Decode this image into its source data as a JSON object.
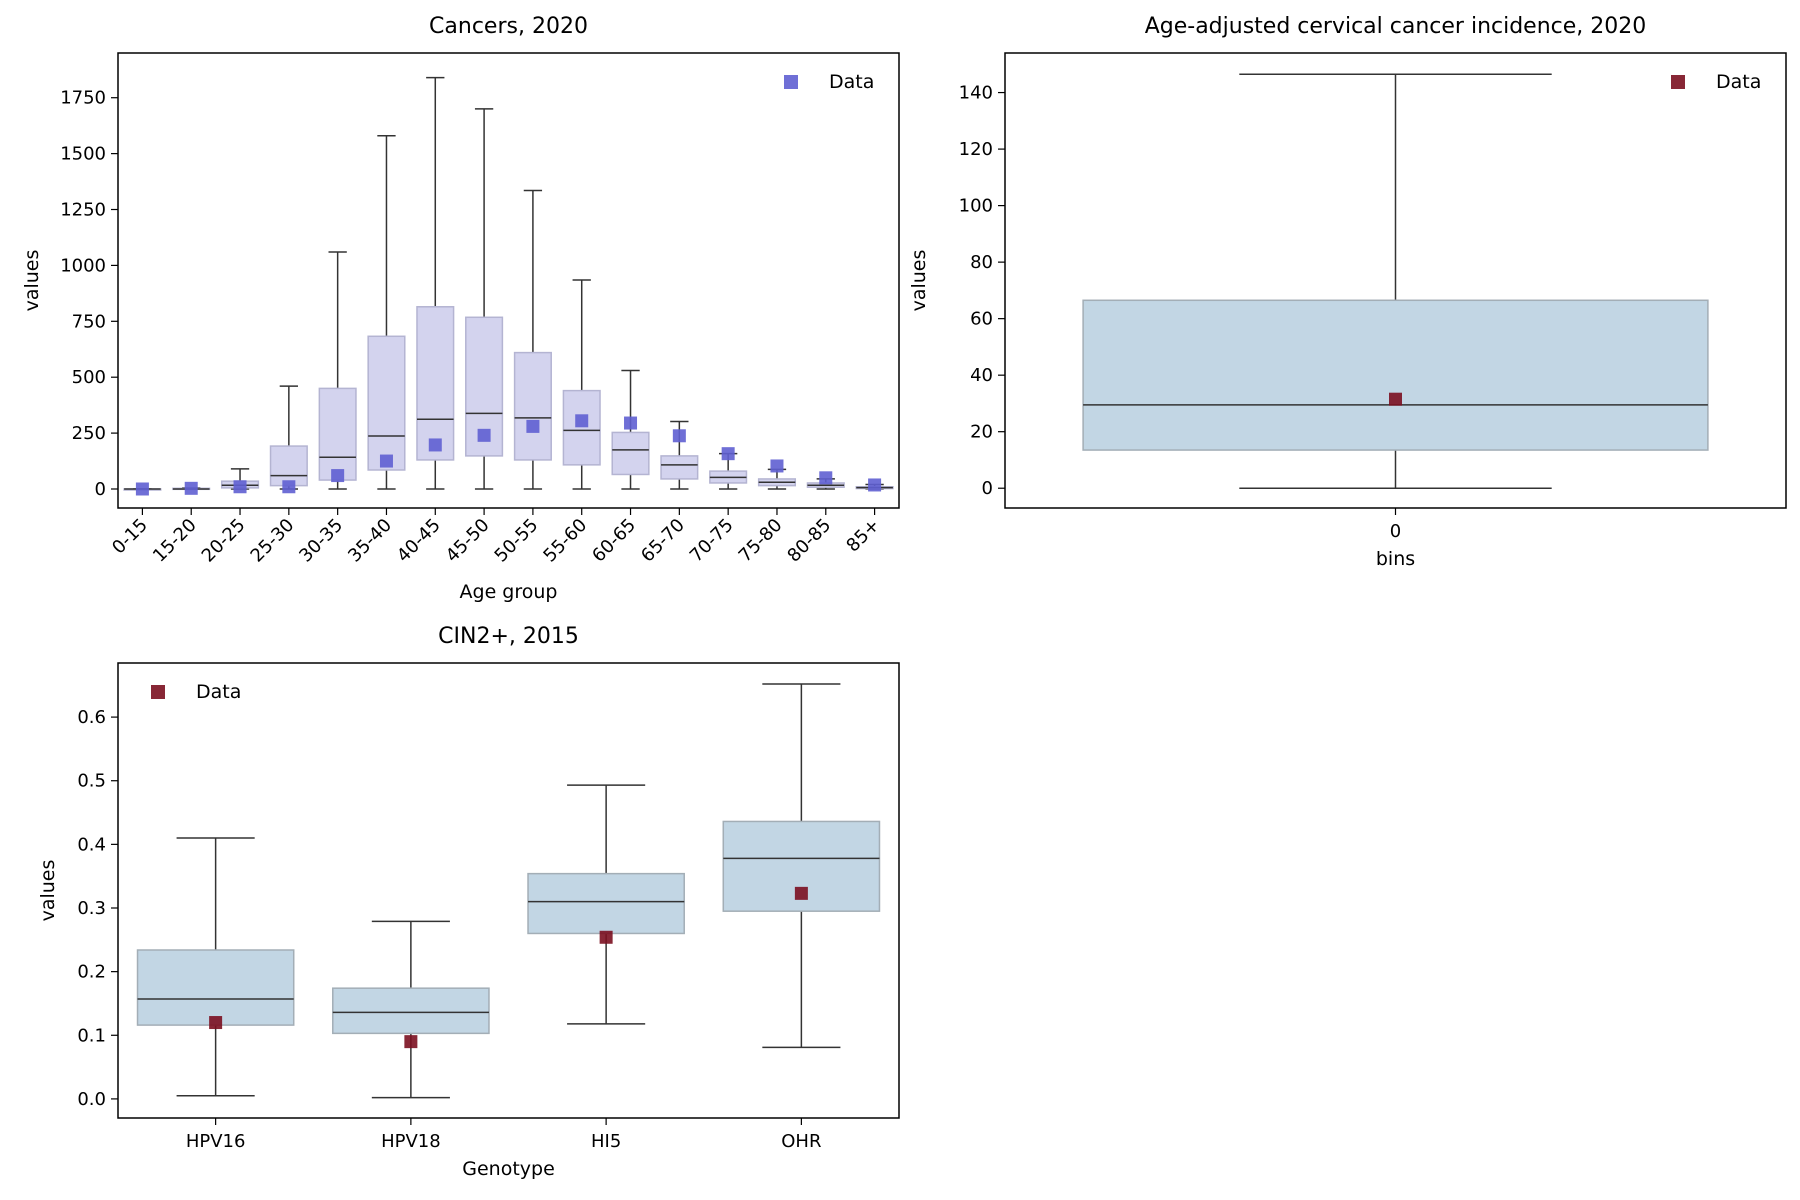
{
  "chart_data": [
    {
      "type": "box",
      "title": "Cancers, 2020",
      "xlabel": "Age group",
      "ylabel": "values",
      "ylim": [
        -85,
        1950
      ],
      "yticks": [
        0,
        250,
        500,
        750,
        1000,
        1250,
        1500,
        1750
      ],
      "box_color": "#d3d3ee",
      "box_edge": "#b4b4d2",
      "marker_color": "#5f5fd2",
      "legend": {
        "label": "Data",
        "position": "upper right"
      },
      "categories": [
        "0-15",
        "15-20",
        "20-25",
        "25-30",
        "30-35",
        "35-40",
        "40-45",
        "45-50",
        "50-55",
        "55-60",
        "60-65",
        "65-70",
        "70-75",
        "75-80",
        "80-85",
        "85+"
      ],
      "boxes": [
        {
          "whislo": 0,
          "q1": 0,
          "med": 0,
          "q3": 0,
          "whishi": 0
        },
        {
          "whislo": 0,
          "q1": 0,
          "med": 0,
          "q3": 3,
          "whishi": 5
        },
        {
          "whislo": 0,
          "q1": 5,
          "med": 17,
          "q3": 35,
          "whishi": 90
        },
        {
          "whislo": 0,
          "q1": 15,
          "med": 60,
          "q3": 192,
          "whishi": 460
        },
        {
          "whislo": 0,
          "q1": 40,
          "med": 142,
          "q3": 450,
          "whishi": 1060
        },
        {
          "whislo": 0,
          "q1": 85,
          "med": 237,
          "q3": 683,
          "whishi": 1580
        },
        {
          "whislo": 0,
          "q1": 130,
          "med": 312,
          "q3": 815,
          "whishi": 1840
        },
        {
          "whislo": 0,
          "q1": 148,
          "med": 338,
          "q3": 768,
          "whishi": 1700
        },
        {
          "whislo": 0,
          "q1": 130,
          "med": 318,
          "q3": 610,
          "whishi": 1335
        },
        {
          "whislo": 0,
          "q1": 108,
          "med": 262,
          "q3": 440,
          "whishi": 935
        },
        {
          "whislo": 0,
          "q1": 65,
          "med": 175,
          "q3": 253,
          "whishi": 530
        },
        {
          "whislo": 0,
          "q1": 45,
          "med": 108,
          "q3": 148,
          "whishi": 302
        },
        {
          "whislo": 0,
          "q1": 27,
          "med": 52,
          "q3": 80,
          "whishi": 158
        },
        {
          "whislo": 0,
          "q1": 15,
          "med": 30,
          "q3": 45,
          "whishi": 88
        },
        {
          "whislo": 0,
          "q1": 8,
          "med": 17,
          "q3": 27,
          "whishi": 45
        },
        {
          "whislo": 0,
          "q1": 2,
          "med": 6,
          "q3": 10,
          "whishi": 20
        }
      ],
      "data_points": [
        0,
        3,
        10,
        10,
        60,
        125,
        197,
        240,
        280,
        305,
        295,
        238,
        158,
        103,
        50,
        18
      ]
    },
    {
      "type": "box",
      "title": "Age-adjusted cervical cancer incidence, 2020",
      "xlabel": "bins",
      "ylabel": "values",
      "ylim": [
        -7,
        154
      ],
      "yticks": [
        0,
        20,
        40,
        60,
        80,
        100,
        120,
        140
      ],
      "box_color": "#c2d6e4",
      "box_edge": "#a3aeb6",
      "marker_color": "#7b1020",
      "legend": {
        "label": "Data",
        "position": "upper right"
      },
      "categories": [
        "0"
      ],
      "boxes": [
        {
          "whislo": 0,
          "q1": 13.5,
          "med": 29.5,
          "q3": 66.5,
          "whishi": 146.5
        }
      ],
      "data_points": [
        31.5
      ]
    },
    {
      "type": "box",
      "title": "CIN2+, 2015",
      "xlabel": "Genotype",
      "ylabel": "values",
      "ylim": [
        -0.03,
        0.685
      ],
      "yticks": [
        0.0,
        0.1,
        0.2,
        0.3,
        0.4,
        0.5,
        0.6
      ],
      "ytick_labels": [
        "0.0",
        "0.1",
        "0.2",
        "0.3",
        "0.4",
        "0.5",
        "0.6"
      ],
      "box_color": "#c2d6e4",
      "box_edge": "#a3aeb6",
      "marker_color": "#7b1020",
      "legend": {
        "label": "Data",
        "position": "upper left"
      },
      "categories": [
        "HPV16",
        "HPV18",
        "HI5",
        "OHR"
      ],
      "boxes": [
        {
          "whislo": 0.005,
          "q1": 0.116,
          "med": 0.157,
          "q3": 0.234,
          "whishi": 0.41
        },
        {
          "whislo": 0.002,
          "q1": 0.103,
          "med": 0.136,
          "q3": 0.174,
          "whishi": 0.279
        },
        {
          "whislo": 0.118,
          "q1": 0.26,
          "med": 0.31,
          "q3": 0.354,
          "whishi": 0.493
        },
        {
          "whislo": 0.081,
          "q1": 0.295,
          "med": 0.378,
          "q3": 0.436,
          "whishi": 0.652
        }
      ],
      "data_points": [
        0.12,
        0.09,
        0.254,
        0.323
      ]
    }
  ]
}
